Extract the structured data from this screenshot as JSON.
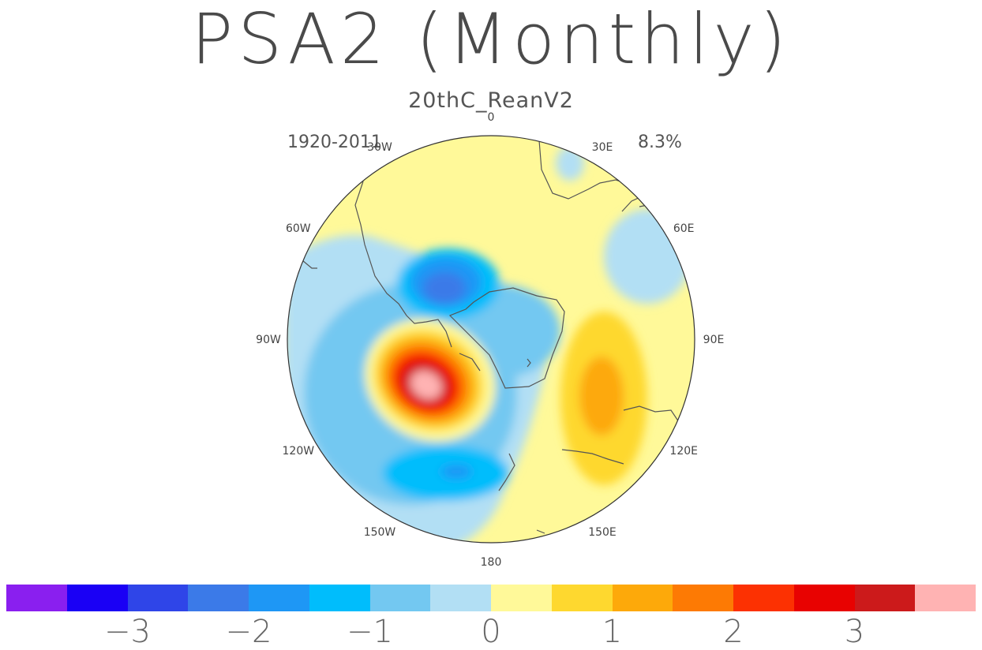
{
  "title": "PSA2 (Monthly)",
  "subtitle": "20thC_ReanV2",
  "period": "1920-2011",
  "variance": "8.3%",
  "longitude_labels": [
    "0",
    "30E",
    "60E",
    "90E",
    "120E",
    "150E",
    "180",
    "150W",
    "120W",
    "90W",
    "60W",
    "30W"
  ],
  "colorbar": {
    "colors": [
      "#8a1fef",
      "#1a00f5",
      "#2f45e8",
      "#3b7ae8",
      "#1e97f5",
      "#00bdfc",
      "#73c8f1",
      "#b2dff4",
      "#fff999",
      "#fed82f",
      "#fda90a",
      "#fd7a04",
      "#fc3102",
      "#e80201",
      "#cc1a1b",
      "#ffb3b3"
    ],
    "tick_labels": [
      "-3",
      "-2",
      "-1",
      "0",
      "1",
      "2",
      "3"
    ],
    "tick_values": [
      -3,
      -2,
      -1,
      0,
      1,
      2,
      3
    ]
  }
}
